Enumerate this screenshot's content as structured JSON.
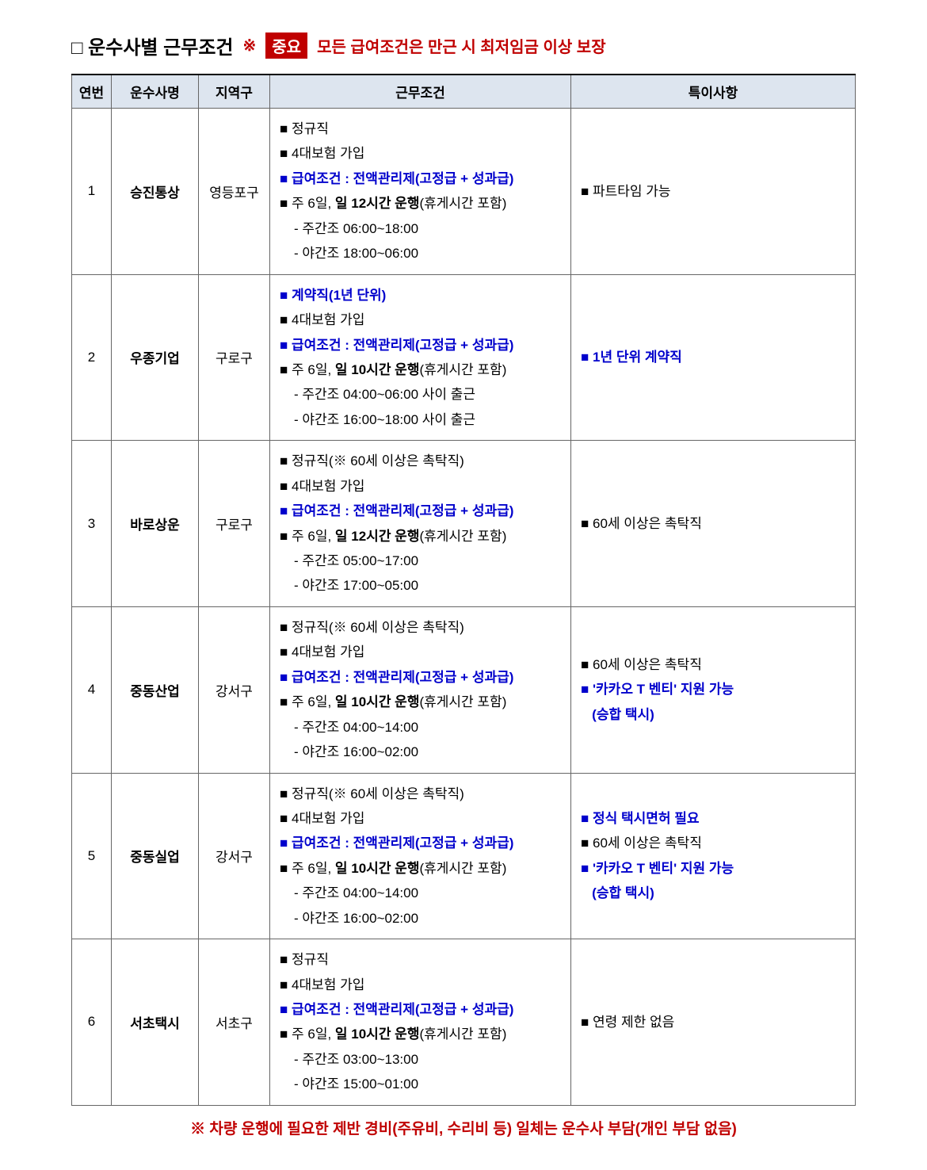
{
  "title": {
    "prefix": "□",
    "main": "운수사별 근무조건",
    "important_mark": "※",
    "important_badge": "중요",
    "important_text": "모든 급여조건은 만근 시 최저임금 이상 보장"
  },
  "columns": {
    "num": "연번",
    "company": "운수사명",
    "district": "지역구",
    "conditions": "근무조건",
    "notes": "특이사항"
  },
  "rows": [
    {
      "num": "1",
      "company": "승진통상",
      "district": "영등포구",
      "conditions": [
        {
          "type": "bullet",
          "parts": [
            {
              "text": "정규직",
              "style": "normal"
            }
          ]
        },
        {
          "type": "bullet",
          "parts": [
            {
              "text": "4대보험 가입",
              "style": "normal"
            }
          ]
        },
        {
          "type": "bullet-blue",
          "parts": [
            {
              "text": "급여조건 : 전액관리제(고정급 + 성과급)",
              "style": "blue-bold"
            }
          ]
        },
        {
          "type": "bullet",
          "parts": [
            {
              "text": "주 6일, ",
              "style": "normal"
            },
            {
              "text": "일 12시간 운행",
              "style": "black-bold"
            },
            {
              "text": "(휴게시간 포함)",
              "style": "normal"
            }
          ]
        },
        {
          "type": "sub",
          "parts": [
            {
              "text": "- 주간조 06:00~18:00",
              "style": "normal"
            }
          ]
        },
        {
          "type": "sub",
          "parts": [
            {
              "text": "- 야간조 18:00~06:00",
              "style": "normal"
            }
          ]
        }
      ],
      "notes": [
        {
          "type": "bullet",
          "parts": [
            {
              "text": "파트타임 가능",
              "style": "normal"
            }
          ]
        }
      ]
    },
    {
      "num": "2",
      "company": "우종기업",
      "district": "구로구",
      "conditions": [
        {
          "type": "bullet-blue",
          "parts": [
            {
              "text": "계약직(1년 단위)",
              "style": "blue-bold"
            }
          ]
        },
        {
          "type": "bullet",
          "parts": [
            {
              "text": "4대보험 가입",
              "style": "normal"
            }
          ]
        },
        {
          "type": "bullet-blue",
          "parts": [
            {
              "text": "급여조건 : 전액관리제(고정급 + 성과급)",
              "style": "blue-bold"
            }
          ]
        },
        {
          "type": "bullet",
          "parts": [
            {
              "text": "주 6일, ",
              "style": "normal"
            },
            {
              "text": "일 10시간 운행",
              "style": "black-bold"
            },
            {
              "text": "(휴게시간 포함)",
              "style": "normal"
            }
          ]
        },
        {
          "type": "sub",
          "parts": [
            {
              "text": "- 주간조 04:00~06:00 사이 출근",
              "style": "normal"
            }
          ]
        },
        {
          "type": "sub",
          "parts": [
            {
              "text": "- 야간조 16:00~18:00 사이 출근",
              "style": "normal"
            }
          ]
        }
      ],
      "notes": [
        {
          "type": "bullet-blue",
          "parts": [
            {
              "text": "1년 단위 계약직",
              "style": "blue-bold"
            }
          ]
        }
      ]
    },
    {
      "num": "3",
      "company": "바로상운",
      "district": "구로구",
      "conditions": [
        {
          "type": "bullet",
          "parts": [
            {
              "text": "정규직(※ 60세 이상은 촉탁직)",
              "style": "normal"
            }
          ]
        },
        {
          "type": "bullet",
          "parts": [
            {
              "text": "4대보험 가입",
              "style": "normal"
            }
          ]
        },
        {
          "type": "bullet-blue",
          "parts": [
            {
              "text": "급여조건 : 전액관리제(고정급 + 성과급)",
              "style": "blue-bold"
            }
          ]
        },
        {
          "type": "bullet",
          "parts": [
            {
              "text": "주 6일, ",
              "style": "normal"
            },
            {
              "text": "일 12시간 운행",
              "style": "black-bold"
            },
            {
              "text": "(휴게시간 포함)",
              "style": "normal"
            }
          ]
        },
        {
          "type": "sub",
          "parts": [
            {
              "text": "- 주간조 05:00~17:00",
              "style": "normal"
            }
          ]
        },
        {
          "type": "sub",
          "parts": [
            {
              "text": "- 야간조 17:00~05:00",
              "style": "normal"
            }
          ]
        }
      ],
      "notes": [
        {
          "type": "bullet",
          "parts": [
            {
              "text": "60세 이상은 촉탁직",
              "style": "normal"
            }
          ]
        }
      ]
    },
    {
      "num": "4",
      "company": "중동산업",
      "district": "강서구",
      "conditions": [
        {
          "type": "bullet",
          "parts": [
            {
              "text": "정규직(※ 60세 이상은 촉탁직)",
              "style": "normal"
            }
          ]
        },
        {
          "type": "bullet",
          "parts": [
            {
              "text": "4대보험 가입",
              "style": "normal"
            }
          ]
        },
        {
          "type": "bullet-blue",
          "parts": [
            {
              "text": "급여조건 : 전액관리제(고정급 + 성과급)",
              "style": "blue-bold"
            }
          ]
        },
        {
          "type": "bullet",
          "parts": [
            {
              "text": "주 6일, ",
              "style": "normal"
            },
            {
              "text": "일 10시간 운행",
              "style": "black-bold"
            },
            {
              "text": "(휴게시간 포함)",
              "style": "normal"
            }
          ]
        },
        {
          "type": "sub",
          "parts": [
            {
              "text": "- 주간조 04:00~14:00",
              "style": "normal"
            }
          ]
        },
        {
          "type": "sub",
          "parts": [
            {
              "text": "- 야간조 16:00~02:00",
              "style": "normal"
            }
          ]
        }
      ],
      "notes": [
        {
          "type": "bullet",
          "parts": [
            {
              "text": "60세 이상은 촉탁직",
              "style": "normal"
            }
          ]
        },
        {
          "type": "bullet-blue",
          "parts": [
            {
              "text": "'카카오 T 벤티' 지원 가능",
              "style": "blue-bold"
            }
          ]
        },
        {
          "type": "plain-blue",
          "parts": [
            {
              "text": "(승합 택시)",
              "style": "blue-bold"
            }
          ]
        }
      ]
    },
    {
      "num": "5",
      "company": "중동실업",
      "district": "강서구",
      "conditions": [
        {
          "type": "bullet",
          "parts": [
            {
              "text": "정규직(※ 60세 이상은 촉탁직)",
              "style": "normal"
            }
          ]
        },
        {
          "type": "bullet",
          "parts": [
            {
              "text": "4대보험 가입",
              "style": "normal"
            }
          ]
        },
        {
          "type": "bullet-blue",
          "parts": [
            {
              "text": "급여조건 : 전액관리제(고정급 + 성과급)",
              "style": "blue-bold"
            }
          ]
        },
        {
          "type": "bullet",
          "parts": [
            {
              "text": "주 6일, ",
              "style": "normal"
            },
            {
              "text": "일 10시간 운행",
              "style": "black-bold"
            },
            {
              "text": "(휴게시간 포함)",
              "style": "normal"
            }
          ]
        },
        {
          "type": "sub",
          "parts": [
            {
              "text": "- 주간조 04:00~14:00",
              "style": "normal"
            }
          ]
        },
        {
          "type": "sub",
          "parts": [
            {
              "text": "- 야간조 16:00~02:00",
              "style": "normal"
            }
          ]
        }
      ],
      "notes": [
        {
          "type": "bullet-blue",
          "parts": [
            {
              "text": "정식 택시면허 필요",
              "style": "blue-bold"
            }
          ]
        },
        {
          "type": "bullet",
          "parts": [
            {
              "text": "60세 이상은 촉탁직",
              "style": "normal"
            }
          ]
        },
        {
          "type": "bullet-blue",
          "parts": [
            {
              "text": "'카카오 T 벤티' 지원 가능",
              "style": "blue-bold"
            }
          ]
        },
        {
          "type": "plain-blue",
          "parts": [
            {
              "text": "(승합 택시)",
              "style": "blue-bold"
            }
          ]
        }
      ]
    },
    {
      "num": "6",
      "company": "서초택시",
      "district": "서초구",
      "conditions": [
        {
          "type": "bullet",
          "parts": [
            {
              "text": "정규직",
              "style": "normal"
            }
          ]
        },
        {
          "type": "bullet",
          "parts": [
            {
              "text": "4대보험 가입",
              "style": "normal"
            }
          ]
        },
        {
          "type": "bullet-blue",
          "parts": [
            {
              "text": "급여조건 : 전액관리제(고정급 + 성과급)",
              "style": "blue-bold"
            }
          ]
        },
        {
          "type": "bullet",
          "parts": [
            {
              "text": "주 6일, ",
              "style": "normal"
            },
            {
              "text": "일 10시간 운행",
              "style": "black-bold"
            },
            {
              "text": "(휴게시간 포함)",
              "style": "normal"
            }
          ]
        },
        {
          "type": "sub",
          "parts": [
            {
              "text": "- 주간조 03:00~13:00",
              "style": "normal"
            }
          ]
        },
        {
          "type": "sub",
          "parts": [
            {
              "text": "- 야간조 15:00~01:00",
              "style": "normal"
            }
          ]
        }
      ],
      "notes": [
        {
          "type": "bullet",
          "parts": [
            {
              "text": "연령 제한 없음",
              "style": "normal"
            }
          ]
        }
      ]
    }
  ],
  "footer": "※ 차량 운행에 필요한 제반 경비(주유비, 수리비 등) 일체는 운수사 부담(개인 부담 없음)"
}
